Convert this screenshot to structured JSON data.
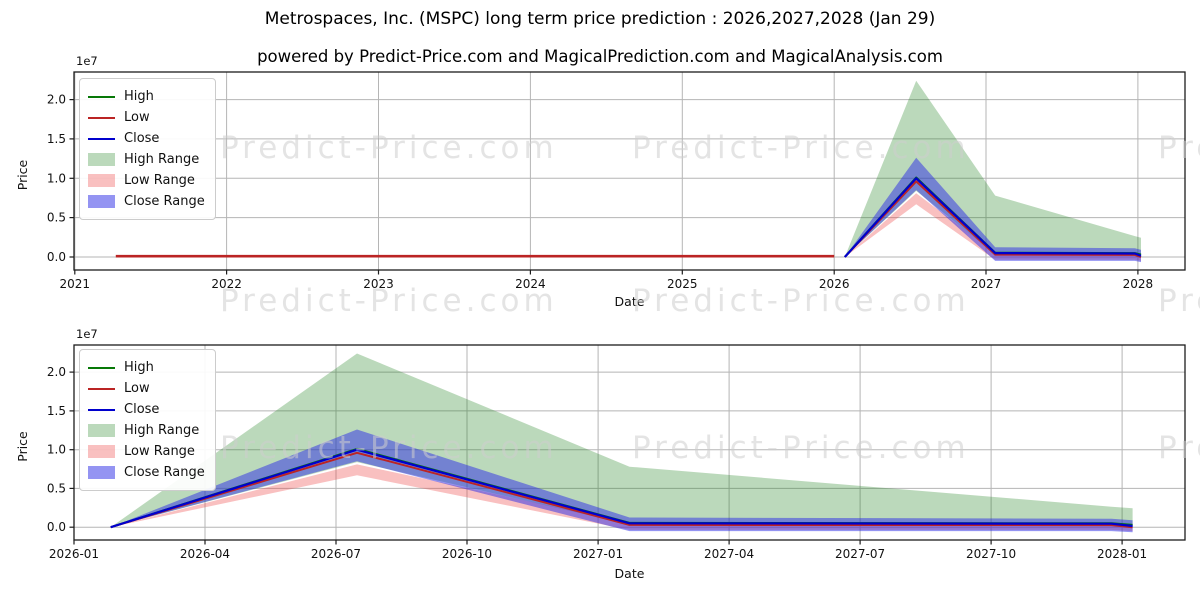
{
  "title": "Metrospaces, Inc. (MSPC) long term price prediction : 2026,2027,2028 (Jan 29)",
  "subtitle": "powered by Predict-Price.com and MagicalPrediction.com and MagicalAnalysis.com",
  "watermark": {
    "text": "Predict-Price.com"
  },
  "colors": {
    "high": "#077807",
    "low": "#bb2424",
    "close": "#0000cd",
    "high_range": "rgba(30,130,30,0.30)",
    "low_range": "rgba(235,60,60,0.32)",
    "close_range": "rgba(50,50,230,0.52)",
    "grid": "#b5b5b5",
    "spine": "#1c1c1c",
    "text": "#111111"
  },
  "legend_items": [
    {
      "label": "High",
      "swatch": "line",
      "color_key": "high"
    },
    {
      "label": "Low",
      "swatch": "line",
      "color_key": "low"
    },
    {
      "label": "Close",
      "swatch": "line",
      "color_key": "close"
    },
    {
      "label": "High Range",
      "swatch": "patch",
      "color_key": "high_range"
    },
    {
      "label": "Low Range",
      "swatch": "patch",
      "color_key": "low_range"
    },
    {
      "label": "Close Range",
      "swatch": "patch",
      "color_key": "close_range"
    }
  ],
  "chart_data": [
    {
      "type": "area",
      "name": "long-term-history-and-prediction",
      "xlabel": "Date",
      "ylabel": "Price",
      "offset_text": "1e7",
      "y_unit_multiplier": 10000000,
      "xlim": [
        2020.995,
        2028.31
      ],
      "ylim": [
        -0.165,
        2.35
      ],
      "grid": true,
      "legend_position": "upper-left",
      "xticks": [
        {
          "v": 2021,
          "label": "2021"
        },
        {
          "v": 2022,
          "label": "2022"
        },
        {
          "v": 2023,
          "label": "2023"
        },
        {
          "v": 2024,
          "label": "2024"
        },
        {
          "v": 2025,
          "label": "2025"
        },
        {
          "v": 2026,
          "label": "2026"
        },
        {
          "v": 2027,
          "label": "2027"
        },
        {
          "v": 2028,
          "label": "2028"
        }
      ],
      "yticks": [
        {
          "v": 0.0,
          "label": "0.0"
        },
        {
          "v": 0.5,
          "label": "0.5"
        },
        {
          "v": 1.0,
          "label": "1.0"
        },
        {
          "v": 1.5,
          "label": "1.5"
        },
        {
          "v": 2.0,
          "label": "2.0"
        }
      ],
      "bands": [
        {
          "name": "high-range",
          "color_key": "high_range",
          "x": [
            2026.07,
            2026.54,
            2027.06,
            2027.98,
            2028.02
          ],
          "top": [
            0.0,
            2.24,
            0.78,
            0.265,
            0.245
          ],
          "bottom": [
            0.0,
            0.84,
            0.035,
            0.03,
            0.03
          ]
        },
        {
          "name": "low-range",
          "color_key": "low_range",
          "x": [
            2026.07,
            2026.54,
            2027.06,
            2027.98,
            2028.02
          ],
          "top": [
            0.0,
            0.81,
            0.055,
            0.05,
            0.03
          ],
          "bottom": [
            0.0,
            0.67,
            -0.035,
            -0.035,
            -0.05
          ]
        },
        {
          "name": "close-range",
          "color_key": "close_range",
          "x": [
            2026.07,
            2026.54,
            2027.06,
            2027.98,
            2028.02
          ],
          "top": [
            0.0,
            1.26,
            0.125,
            0.11,
            0.09
          ],
          "bottom": [
            0.0,
            0.85,
            -0.05,
            -0.05,
            -0.065
          ]
        }
      ],
      "lines": [
        {
          "name": "historical-low",
          "color_key": "low",
          "width": 2.6,
          "x": [
            2021.27,
            2026.0
          ],
          "y": [
            0.01,
            0.01
          ]
        },
        {
          "name": "high-line",
          "color_key": "high",
          "width": 2,
          "x": [
            2026.07,
            2026.54,
            2027.06,
            2027.98,
            2028.02
          ],
          "y": [
            0.0,
            1.01,
            0.055,
            0.05,
            0.03
          ]
        },
        {
          "name": "low-line",
          "color_key": "low",
          "width": 2,
          "x": [
            2026.07,
            2026.54,
            2027.06,
            2027.98,
            2028.02
          ],
          "y": [
            0.0,
            0.96,
            0.03,
            0.027,
            0.0
          ]
        },
        {
          "name": "close-line",
          "color_key": "close",
          "width": 2.2,
          "x": [
            2026.07,
            2026.54,
            2027.06,
            2027.98,
            2028.02
          ],
          "y": [
            0.0,
            1.0,
            0.05,
            0.045,
            0.015
          ]
        }
      ]
    },
    {
      "type": "area",
      "name": "prediction-detail-2026-2028",
      "xlabel": "Date",
      "ylabel": "Price",
      "offset_text": "1e7",
      "y_unit_multiplier": 10000000,
      "xlim": [
        2026.0,
        2028.12
      ],
      "ylim": [
        -0.165,
        2.35
      ],
      "grid": true,
      "legend_position": "upper-left",
      "xticks": [
        {
          "v": 2026.0,
          "label": "2026-01"
        },
        {
          "v": 2026.25,
          "label": "2026-04"
        },
        {
          "v": 2026.5,
          "label": "2026-07"
        },
        {
          "v": 2026.75,
          "label": "2026-10"
        },
        {
          "v": 2027.0,
          "label": "2027-01"
        },
        {
          "v": 2027.25,
          "label": "2027-04"
        },
        {
          "v": 2027.5,
          "label": "2027-07"
        },
        {
          "v": 2027.75,
          "label": "2027-10"
        },
        {
          "v": 2028.0,
          "label": "2028-01"
        }
      ],
      "yticks": [
        {
          "v": 0.0,
          "label": "0.0"
        },
        {
          "v": 0.5,
          "label": "0.5"
        },
        {
          "v": 1.0,
          "label": "1.0"
        },
        {
          "v": 1.5,
          "label": "1.5"
        },
        {
          "v": 2.0,
          "label": "2.0"
        }
      ],
      "bands": [
        {
          "name": "high-range",
          "color_key": "high_range",
          "x": [
            2026.07,
            2026.54,
            2027.06,
            2027.98,
            2028.02
          ],
          "top": [
            0.0,
            2.24,
            0.78,
            0.265,
            0.245
          ],
          "bottom": [
            0.0,
            0.84,
            0.035,
            0.03,
            0.03
          ]
        },
        {
          "name": "low-range",
          "color_key": "low_range",
          "x": [
            2026.07,
            2026.54,
            2027.06,
            2027.98,
            2028.02
          ],
          "top": [
            0.0,
            0.81,
            0.055,
            0.05,
            0.03
          ],
          "bottom": [
            0.0,
            0.67,
            -0.035,
            -0.035,
            -0.05
          ]
        },
        {
          "name": "close-range",
          "color_key": "close_range",
          "x": [
            2026.07,
            2026.54,
            2027.06,
            2027.98,
            2028.02
          ],
          "top": [
            0.0,
            1.26,
            0.125,
            0.11,
            0.09
          ],
          "bottom": [
            0.0,
            0.85,
            -0.05,
            -0.05,
            -0.065
          ]
        }
      ],
      "lines": [
        {
          "name": "high-line",
          "color_key": "high",
          "width": 2,
          "x": [
            2026.07,
            2026.54,
            2027.06,
            2027.98,
            2028.02
          ],
          "y": [
            0.0,
            1.01,
            0.055,
            0.05,
            0.03
          ]
        },
        {
          "name": "low-line",
          "color_key": "low",
          "width": 2,
          "x": [
            2026.07,
            2026.54,
            2027.06,
            2027.98,
            2028.02
          ],
          "y": [
            0.0,
            0.96,
            0.03,
            0.027,
            0.0
          ]
        },
        {
          "name": "close-line",
          "color_key": "close",
          "width": 2.2,
          "x": [
            2026.07,
            2026.54,
            2027.06,
            2027.98,
            2028.02
          ],
          "y": [
            0.0,
            1.0,
            0.05,
            0.045,
            0.015
          ]
        }
      ]
    }
  ]
}
